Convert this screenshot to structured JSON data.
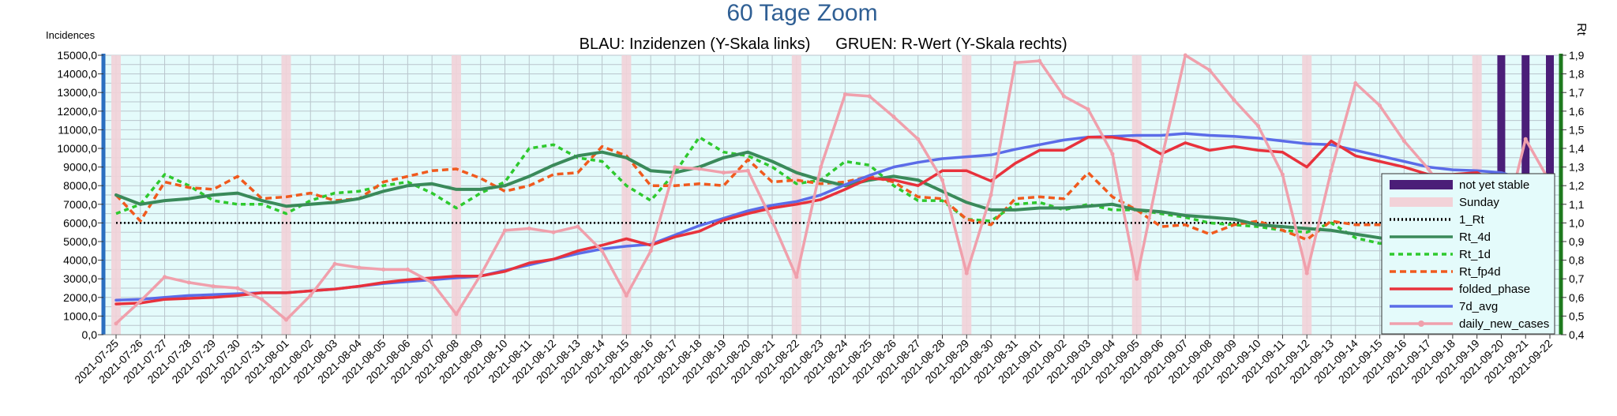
{
  "chart_data": {
    "type": "line",
    "title": "60 Tage Zoom",
    "subtitle_left": "BLAU: Inzidenzen (Y-Skala links)",
    "subtitle_right": "GRUEN: R-Wert (Y-Skala rechts)",
    "ylabel_left": "Incidences",
    "ylabel_right": "Rt",
    "y_left_range": [
      0,
      15000
    ],
    "y_left_ticks": [
      "0,0",
      "1000,0",
      "2000,0",
      "3000,0",
      "4000,0",
      "5000,0",
      "6000,0",
      "7000,0",
      "8000,0",
      "9000,0",
      "10000,0",
      "11000,0",
      "12000,0",
      "13000,0",
      "14000,0",
      "15000,0"
    ],
    "y_right_range": [
      0.4,
      1.9
    ],
    "y_right_ticks": [
      "0,4",
      "0,5",
      "0,6",
      "0,7",
      "0,8",
      "0,9",
      "1,0",
      "1,1",
      "1,2",
      "1,3",
      "1,4",
      "1,5",
      "1,6",
      "1,7",
      "1,8",
      "1,9"
    ],
    "grid": true,
    "legend_position": "right",
    "categories": [
      "2021-07-25",
      "2021-07-26",
      "2021-07-27",
      "2021-07-28",
      "2021-07-29",
      "2021-07-30",
      "2021-07-31",
      "2021-08-01",
      "2021-08-02",
      "2021-08-03",
      "2021-08-04",
      "2021-08-05",
      "2021-08-06",
      "2021-08-07",
      "2021-08-08",
      "2021-08-09",
      "2021-08-10",
      "2021-08-11",
      "2021-08-12",
      "2021-08-13",
      "2021-08-14",
      "2021-08-15",
      "2021-08-16",
      "2021-08-17",
      "2021-08-18",
      "2021-08-19",
      "2021-08-20",
      "2021-08-21",
      "2021-08-22",
      "2021-08-23",
      "2021-08-24",
      "2021-08-25",
      "2021-08-26",
      "2021-08-27",
      "2021-08-28",
      "2021-08-29",
      "2021-08-30",
      "2021-08-31",
      "2021-09-01",
      "2021-09-02",
      "2021-09-03",
      "2021-09-04",
      "2021-09-05",
      "2021-09-06",
      "2021-09-07",
      "2021-09-08",
      "2021-09-09",
      "2021-09-10",
      "2021-09-11",
      "2021-09-12",
      "2021-09-13",
      "2021-09-14",
      "2021-09-15",
      "2021-09-16",
      "2021-09-17",
      "2021-09-18",
      "2021-09-19",
      "2021-09-20",
      "2021-09-21",
      "2021-09-22"
    ],
    "sunday_indices": [
      0,
      7,
      14,
      21,
      28,
      35,
      42,
      49,
      56
    ],
    "not_yet_stable_indices": [
      57,
      58,
      59
    ],
    "series": [
      {
        "name": "daily_new_cases",
        "axis": "left",
        "color": "#f0a0ac",
        "width": 3.5,
        "dash": "",
        "marker": true,
        "values": [
          600,
          1800,
          3100,
          2800,
          2600,
          2500,
          1900,
          800,
          2100,
          3800,
          3600,
          3500,
          3500,
          2800,
          1100,
          3200,
          5600,
          5700,
          5500,
          5800,
          4500,
          2100,
          4500,
          9000,
          8900,
          8700,
          8800,
          6100,
          3100,
          9000,
          12900,
          12800,
          11700,
          10500,
          8300,
          3300,
          7500,
          14600,
          14700,
          12800,
          12100,
          9700,
          3000,
          9300,
          15000,
          14200,
          12600,
          11200,
          8600,
          3300,
          8800,
          13500,
          12300,
          10400,
          8900,
          7100,
          3700,
          5200,
          10500,
          8200
        ]
      },
      {
        "name": "7d_avg",
        "axis": "left",
        "color": "#5b6ce8",
        "width": 3.5,
        "dash": "",
        "marker": false,
        "values": [
          1850,
          1900,
          2000,
          2100,
          2150,
          2200,
          2250,
          2250,
          2350,
          2450,
          2600,
          2750,
          2850,
          2950,
          3050,
          3150,
          3450,
          3750,
          4050,
          4350,
          4600,
          4750,
          4850,
          5350,
          5850,
          6250,
          6650,
          6950,
          7150,
          7500,
          8050,
          8550,
          9000,
          9250,
          9450,
          9550,
          9650,
          9950,
          10200,
          10450,
          10600,
          10650,
          10700,
          10700,
          10800,
          10700,
          10650,
          10550,
          10400,
          10250,
          10200,
          9900,
          9600,
          9300,
          9000,
          8850,
          8800,
          8700,
          8300,
          7200
        ]
      },
      {
        "name": "folded_phase",
        "axis": "left",
        "color": "#e8323c",
        "width": 3.5,
        "dash": "",
        "marker": false,
        "values": [
          1650,
          1700,
          1900,
          1950,
          2000,
          2100,
          2250,
          2250,
          2350,
          2450,
          2600,
          2800,
          2950,
          3050,
          3150,
          3150,
          3400,
          3850,
          4050,
          4500,
          4800,
          5150,
          4800,
          5250,
          5550,
          6150,
          6500,
          6800,
          7000,
          7250,
          7800,
          8400,
          8300,
          8000,
          8800,
          8800,
          8250,
          9200,
          9900,
          9900,
          10600,
          10600,
          10400,
          9700,
          10300,
          9900,
          10100,
          9900,
          9800,
          9000,
          10400,
          9600,
          9300,
          9000,
          8600,
          8600,
          8700,
          8000,
          8000,
          6700
        ]
      },
      {
        "name": "Rt_4d",
        "axis": "right",
        "color": "#3a8a5a",
        "width": 4,
        "dash": "",
        "marker": false,
        "values": [
          1.15,
          1.1,
          1.12,
          1.13,
          1.15,
          1.16,
          1.12,
          1.09,
          1.1,
          1.11,
          1.13,
          1.17,
          1.2,
          1.21,
          1.18,
          1.18,
          1.2,
          1.25,
          1.31,
          1.36,
          1.38,
          1.35,
          1.28,
          1.27,
          1.3,
          1.35,
          1.38,
          1.33,
          1.27,
          1.23,
          1.2,
          1.23,
          1.25,
          1.23,
          1.17,
          1.11,
          1.07,
          1.07,
          1.08,
          1.08,
          1.09,
          1.1,
          1.07,
          1.06,
          1.04,
          1.03,
          1.02,
          0.99,
          0.98,
          0.97,
          0.96,
          0.94,
          0.92,
          0.9,
          0.89,
          0.9,
          0.92,
          0.93,
          0.92,
          0.73
        ]
      },
      {
        "name": "Rt_1d",
        "axis": "right",
        "color": "#2ec92e",
        "width": 3.5,
        "dash": "6,5",
        "marker": false,
        "values": [
          1.05,
          1.1,
          1.26,
          1.2,
          1.12,
          1.1,
          1.1,
          1.05,
          1.12,
          1.16,
          1.17,
          1.2,
          1.22,
          1.16,
          1.08,
          1.16,
          1.22,
          1.4,
          1.42,
          1.35,
          1.33,
          1.2,
          1.12,
          1.27,
          1.46,
          1.38,
          1.36,
          1.3,
          1.21,
          1.23,
          1.33,
          1.31,
          1.2,
          1.12,
          1.12,
          1.02,
          1.01,
          1.1,
          1.11,
          1.07,
          1.1,
          1.07,
          1.07,
          1.05,
          1.03,
          1.0,
          0.99,
          0.98,
          0.96,
          0.95,
          1.0,
          0.92,
          0.89,
          0.89,
          0.88,
          0.88,
          0.98,
          0.91,
          0.88,
          0.76
        ]
      },
      {
        "name": "Rt_fp4d",
        "axis": "right",
        "color": "#f05a1e",
        "width": 3.5,
        "dash": "8,5",
        "marker": false,
        "values": [
          1.15,
          1.01,
          1.22,
          1.19,
          1.18,
          1.25,
          1.13,
          1.14,
          1.16,
          1.12,
          1.13,
          1.22,
          1.25,
          1.28,
          1.29,
          1.24,
          1.17,
          1.2,
          1.26,
          1.27,
          1.41,
          1.36,
          1.2,
          1.2,
          1.21,
          1.2,
          1.34,
          1.22,
          1.23,
          1.21,
          1.22,
          1.25,
          1.22,
          1.14,
          1.13,
          1.02,
          0.99,
          1.13,
          1.14,
          1.13,
          1.27,
          1.14,
          1.07,
          0.98,
          0.99,
          0.94,
          0.99,
          1.01,
          0.96,
          0.91,
          1.01,
          0.99,
          0.99,
          0.99,
          0.83,
          0.91,
          0.94,
          0.9,
          0.93,
          0.78
        ]
      },
      {
        "name": "1_Rt",
        "axis": "right",
        "color": "#000000",
        "width": 2.5,
        "dash": "2,3",
        "marker": false,
        "values": [
          1,
          1,
          1,
          1,
          1,
          1,
          1,
          1,
          1,
          1,
          1,
          1,
          1,
          1,
          1,
          1,
          1,
          1,
          1,
          1,
          1,
          1,
          1,
          1,
          1,
          1,
          1,
          1,
          1,
          1,
          1,
          1,
          1,
          1,
          1,
          1,
          1,
          1,
          1,
          1,
          1,
          1,
          1,
          1,
          1,
          1,
          1,
          1,
          1,
          1,
          1,
          1,
          1,
          1,
          1,
          1,
          1,
          1,
          1,
          1
        ]
      }
    ],
    "legend": [
      {
        "label": "not yet stable",
        "kind": "band",
        "color": "#4b1e78"
      },
      {
        "label": "Sunday",
        "kind": "band",
        "color": "#f2d2d8"
      },
      {
        "label": "1_Rt",
        "kind": "line",
        "color": "#000000",
        "dash": "2,3"
      },
      {
        "label": "Rt_4d",
        "kind": "line",
        "color": "#3a8a5a",
        "dash": ""
      },
      {
        "label": "Rt_1d",
        "kind": "line",
        "color": "#2ec92e",
        "dash": "6,5"
      },
      {
        "label": "Rt_fp4d",
        "kind": "line",
        "color": "#f05a1e",
        "dash": "8,5"
      },
      {
        "label": "folded_phase",
        "kind": "line",
        "color": "#e8323c",
        "dash": ""
      },
      {
        "label": "7d_avg",
        "kind": "line",
        "color": "#5b6ce8",
        "dash": ""
      },
      {
        "label": "daily_new_cases",
        "kind": "line-marker",
        "color": "#f0a0ac",
        "dash": ""
      }
    ],
    "colors": {
      "plot_background": "#e4fbfb",
      "grid": "#b9c5cc",
      "left_axis": "#2b6fc0",
      "right_axis": "#1e7a1e",
      "title": "#2f5f94"
    }
  }
}
